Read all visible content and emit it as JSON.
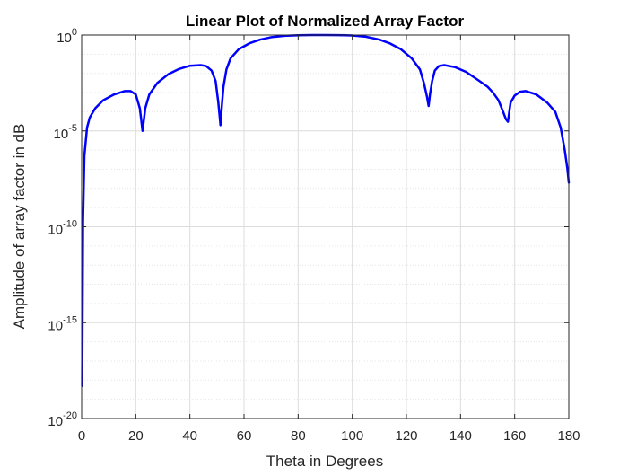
{
  "chart_data": {
    "type": "line",
    "title": "Linear Plot of Normalized Array Factor",
    "xlabel": "Theta in Degrees",
    "ylabel": "Amplitude of array factor in dB",
    "xlim": [
      0,
      180
    ],
    "ylim": [
      1e-20,
      1
    ],
    "yscale": "log",
    "grid": true,
    "minor_grid": true,
    "box": true,
    "xticks": [
      0,
      20,
      40,
      60,
      80,
      100,
      120,
      140,
      160,
      180
    ],
    "xtick_labels": [
      "0",
      "20",
      "40",
      "60",
      "80",
      "100",
      "120",
      "140",
      "160",
      "180"
    ],
    "yticks": [
      1e-20,
      1e-15,
      1e-10,
      1e-05,
      1
    ],
    "ytick_labels": [
      {
        "base": "10",
        "exp": "-20"
      },
      {
        "base": "10",
        "exp": "-15"
      },
      {
        "base": "10",
        "exp": "-10"
      },
      {
        "base": "10",
        "exp": "-5"
      },
      {
        "base": "10",
        "exp": "0"
      }
    ],
    "series": [
      {
        "color": "#0000ff",
        "x": [
          0.2,
          0.5,
          1,
          2,
          3,
          5,
          8,
          12,
          16,
          18,
          20,
          21.5,
          22.5,
          23.5,
          25,
          28,
          32,
          36,
          40,
          44,
          46,
          48,
          49.5,
          50.5,
          51.3,
          51.8,
          52.4,
          53.5,
          55,
          58,
          62,
          66,
          70,
          75,
          80,
          85,
          90,
          95,
          100,
          105,
          110,
          114,
          118,
          122,
          125,
          126.5,
          127.6,
          128.2,
          128.7,
          129.5,
          130.5,
          132,
          134,
          138,
          142,
          146,
          150,
          152,
          154,
          155.5,
          156.8,
          157.5,
          158.5,
          160,
          162,
          164,
          168,
          172,
          175,
          177,
          178.5,
          179.5,
          180
        ],
        "y": [
          5e-19,
          2e-10,
          5e-07,
          1.5e-05,
          5e-05,
          0.00015,
          0.0004,
          0.0008,
          0.0012,
          0.0012,
          0.0008,
          0.00015,
          1e-05,
          0.00015,
          0.0008,
          0.0032,
          0.009,
          0.017,
          0.025,
          0.027,
          0.024,
          0.014,
          0.004,
          0.0003,
          2e-05,
          0.0002,
          0.002,
          0.016,
          0.06,
          0.18,
          0.37,
          0.58,
          0.77,
          0.91,
          0.98,
          1.0,
          1.0,
          0.99,
          0.95,
          0.82,
          0.58,
          0.36,
          0.18,
          0.06,
          0.016,
          0.003,
          0.0006,
          0.0002,
          0.0008,
          0.004,
          0.014,
          0.024,
          0.027,
          0.021,
          0.012,
          0.005,
          0.002,
          0.001,
          0.0004,
          0.00012,
          4e-05,
          3e-05,
          0.0003,
          0.0007,
          0.0011,
          0.0012,
          0.0008,
          0.0003,
          0.0001,
          1.5e-05,
          1e-06,
          1e-07,
          2e-08
        ]
      }
    ]
  }
}
